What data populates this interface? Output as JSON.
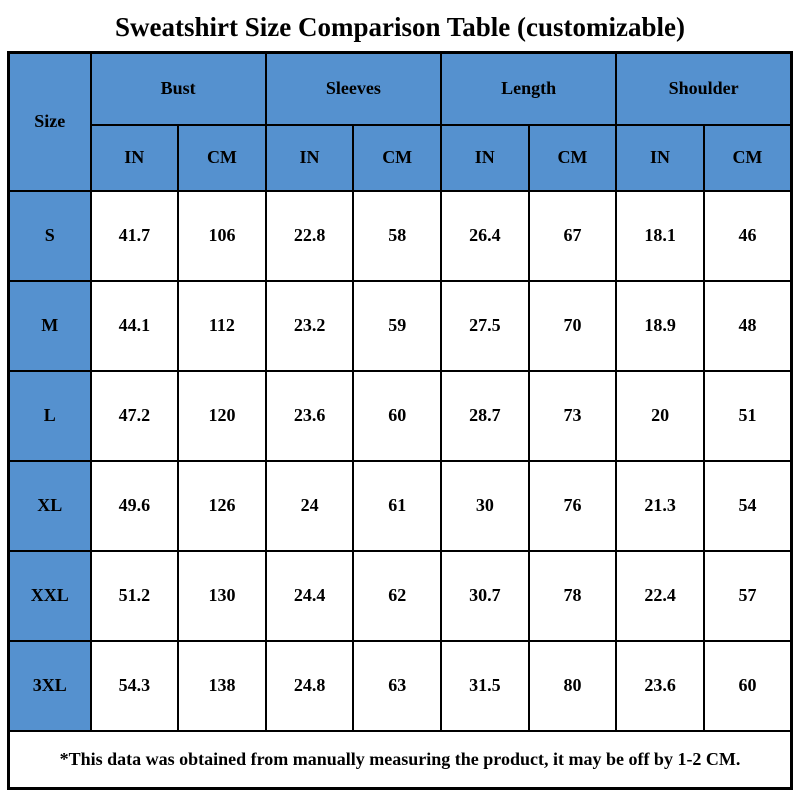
{
  "title": "Sweatshirt Size Comparison Table (customizable)",
  "colors": {
    "header_blue": "#5591cf",
    "border": "#000000",
    "cell_bg": "#ffffff"
  },
  "table": {
    "size_header": "Size",
    "groups": [
      {
        "label": "Bust"
      },
      {
        "label": "Sleeves"
      },
      {
        "label": "Length"
      },
      {
        "label": "Shoulder"
      }
    ],
    "units": [
      "IN",
      "CM",
      "IN",
      "CM",
      "IN",
      "CM",
      "IN",
      "CM"
    ],
    "rows": [
      {
        "size": "S",
        "values": [
          "41.7",
          "106",
          "22.8",
          "58",
          "26.4",
          "67",
          "18.1",
          "46"
        ]
      },
      {
        "size": "M",
        "values": [
          "44.1",
          "112",
          "23.2",
          "59",
          "27.5",
          "70",
          "18.9",
          "48"
        ]
      },
      {
        "size": "L",
        "values": [
          "47.2",
          "120",
          "23.6",
          "60",
          "28.7",
          "73",
          "20",
          "51"
        ]
      },
      {
        "size": "XL",
        "values": [
          "49.6",
          "126",
          "24",
          "61",
          "30",
          "76",
          "21.3",
          "54"
        ]
      },
      {
        "size": "XXL",
        "values": [
          "51.2",
          "130",
          "24.4",
          "62",
          "30.7",
          "78",
          "22.4",
          "57"
        ]
      },
      {
        "size": "3XL",
        "values": [
          "54.3",
          "138",
          "24.8",
          "63",
          "31.5",
          "80",
          "23.6",
          "60"
        ]
      }
    ],
    "footnote": "*This data was obtained from manually measuring the product, it may be off by 1-2 CM."
  }
}
